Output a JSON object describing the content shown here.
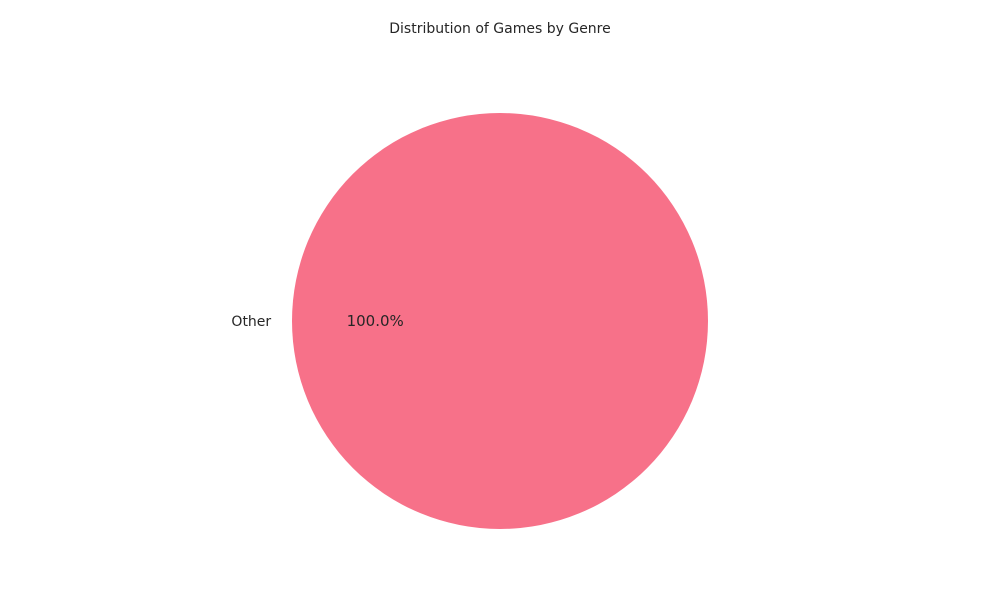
{
  "chart_data": {
    "type": "pie",
    "title": "Distribution of Games by Genre",
    "slices": [
      {
        "label": "Other",
        "value": 100.0,
        "percent_label": "100.0%",
        "color": "#f77189"
      }
    ]
  }
}
